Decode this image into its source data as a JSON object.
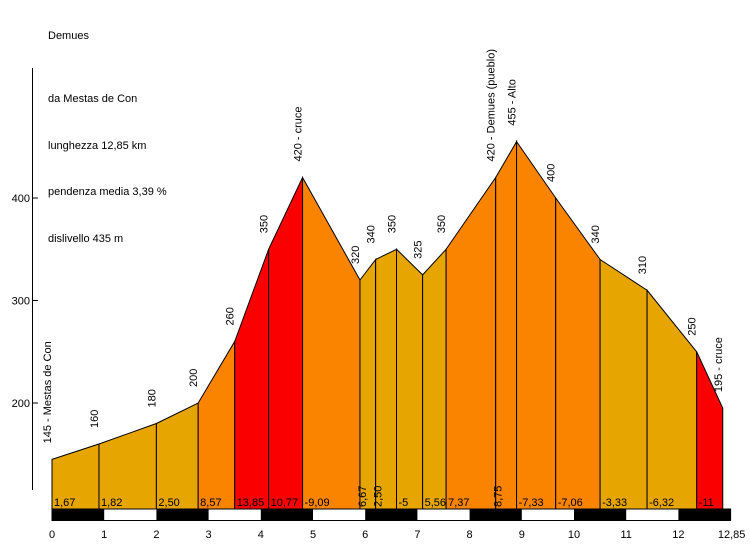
{
  "header": {
    "title": "Demues",
    "info_lines": [
      "da Mestas de Con",
      "lunghezza 12,85 km",
      "pendenza media 3,39 %",
      "dislivello 435 m"
    ]
  },
  "chart_data": {
    "type": "area",
    "title": "Demues",
    "subtitle": "da Mestas de Con",
    "route": {
      "start_label": "145 - Mestas de Con",
      "summit_label": "455 - Alto",
      "end_label": "195 - cruce",
      "length_km_label": "12,85 km",
      "avg_grade_label": "3,39 %",
      "climb_label": "435 m"
    },
    "x_axis": {
      "unit": "km",
      "ticks": [
        "0",
        "1",
        "2",
        "3",
        "4",
        "5",
        "6",
        "7",
        "8",
        "9",
        "10",
        "11",
        "12"
      ],
      "end_tick_label": "12,85",
      "range": [
        0,
        12.85
      ],
      "bar_end_km": 13
    },
    "y_axis": {
      "unit": "m",
      "ticks": [
        "200",
        "300",
        "400"
      ],
      "tick_values": [
        200,
        300,
        400
      ]
    },
    "points": [
      {
        "km": 0,
        "elev": 145,
        "label": "145 - Mestas de Con"
      },
      {
        "km": 0.9,
        "elev": 160,
        "label": "160"
      },
      {
        "km": 2.0,
        "elev": 180,
        "label": "180"
      },
      {
        "km": 2.8,
        "elev": 200,
        "label": "200"
      },
      {
        "km": 3.5,
        "elev": 260,
        "label": "260"
      },
      {
        "km": 4.15,
        "elev": 350,
        "label": "350"
      },
      {
        "km": 4.8,
        "elev": 420,
        "label": "420 - cruce"
      },
      {
        "km": 5.9,
        "elev": 320,
        "label": "320"
      },
      {
        "km": 6.2,
        "elev": 340,
        "label": "340"
      },
      {
        "km": 6.6,
        "elev": 350,
        "label": "350"
      },
      {
        "km": 7.1,
        "elev": 325,
        "label": "325"
      },
      {
        "km": 7.55,
        "elev": 350,
        "label": "350"
      },
      {
        "km": 8.5,
        "elev": 420,
        "label": "420 - Demues (pueblo)"
      },
      {
        "km": 8.9,
        "elev": 455,
        "label": "455 - Alto"
      },
      {
        "km": 9.65,
        "elev": 400,
        "label": "400"
      },
      {
        "km": 10.5,
        "elev": 340,
        "label": "340"
      },
      {
        "km": 11.4,
        "elev": 310,
        "label": "310"
      },
      {
        "km": 12.35,
        "elev": 250,
        "label": "250"
      },
      {
        "km": 12.85,
        "elev": 195,
        "label": "195 - cruce"
      }
    ],
    "segments": [
      {
        "grade_label": "1,67",
        "steepness": "easy"
      },
      {
        "grade_label": "1,82",
        "steepness": "easy"
      },
      {
        "grade_label": "2,50",
        "steepness": "easy"
      },
      {
        "grade_label": "8,57",
        "steepness": "medium"
      },
      {
        "grade_label": "13,85",
        "steepness": "hard"
      },
      {
        "grade_label": "10,77",
        "steepness": "hard"
      },
      {
        "grade_label": "-9,09",
        "steepness": "medium"
      },
      {
        "grade_label": "6,67",
        "steepness": "easy"
      },
      {
        "grade_label": "2,50",
        "steepness": "easy"
      },
      {
        "grade_label": "-5",
        "steepness": "easy"
      },
      {
        "grade_label": "5,56",
        "steepness": "easy"
      },
      {
        "grade_label": "7,37",
        "steepness": "medium"
      },
      {
        "grade_label": "8,75",
        "steepness": "medium"
      },
      {
        "grade_label": "-7,33",
        "steepness": "medium"
      },
      {
        "grade_label": "-7,06",
        "steepness": "medium"
      },
      {
        "grade_label": "-3,33",
        "steepness": "easy"
      },
      {
        "grade_label": "-6,32",
        "steepness": "easy"
      },
      {
        "grade_label": "-11",
        "steepness": "hard"
      }
    ],
    "colors": {
      "easy": "#E6A500",
      "medium": "#FA8300",
      "hard": "#FA0000",
      "outline": "#000000",
      "bar_black": "#000000",
      "bar_white": "#FFFFFF"
    },
    "legend": "none",
    "grid": "off"
  }
}
